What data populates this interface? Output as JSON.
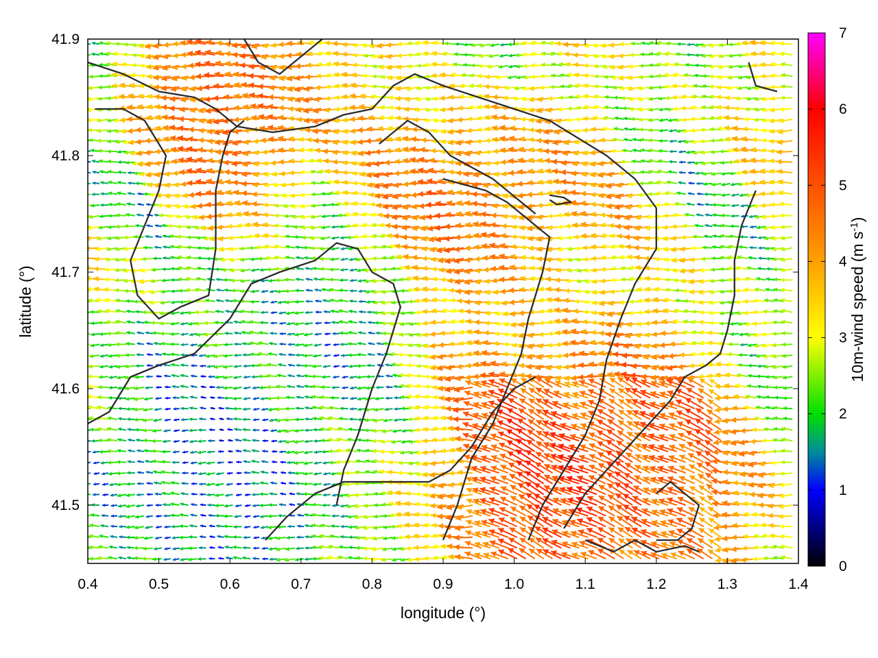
{
  "chart_data": {
    "type": "vector-field",
    "xlabel": "longitude (°)",
    "ylabel": "latitude (°)",
    "xlim": [
      0.4,
      1.4
    ],
    "ylim": [
      41.45,
      41.9
    ],
    "xticks": [
      0.4,
      0.5,
      0.6,
      0.7,
      0.8,
      0.9,
      1.0,
      1.1,
      1.2,
      1.3,
      1.4
    ],
    "xtick_labels": [
      "0.4",
      "0.5",
      "0.6",
      "0.7",
      "0.8",
      "0.9",
      "1.0",
      "1.1",
      "1.2",
      "1.3",
      "1.4"
    ],
    "yticks": [
      41.5,
      41.6,
      41.7,
      41.8,
      41.9
    ],
    "ytick_labels": [
      "41.5",
      "41.6",
      "41.7",
      "41.8",
      "41.9"
    ],
    "colorbar": {
      "label_main": "10m-wind speed (m s",
      "label_sup": "-1",
      "label_end": ")",
      "range": [
        0,
        7
      ],
      "ticks": [
        0,
        1,
        2,
        3,
        4,
        5,
        6,
        7
      ],
      "tick_labels": [
        "0",
        "1",
        "2",
        "3",
        "4",
        "5",
        "6",
        "7"
      ],
      "palette": [
        {
          "value": 0,
          "color": "#000000"
        },
        {
          "value": 1,
          "color": "#0000ff"
        },
        {
          "value": 1.5,
          "color": "#008c9a"
        },
        {
          "value": 2,
          "color": "#00e000"
        },
        {
          "value": 3,
          "color": "#ffff00"
        },
        {
          "value": 4,
          "color": "#ffa000"
        },
        {
          "value": 5,
          "color": "#ff5000"
        },
        {
          "value": 6,
          "color": "#ff0000"
        },
        {
          "value": 7,
          "color": "#ff00ff"
        }
      ]
    },
    "wind_direction": "predominantly easterly (vectors pointing west), veering to north-westward in the south-east",
    "speed_regions": [
      {
        "name": "north-central high-wind band",
        "lon": [
          0.55,
          0.7
        ],
        "lat": [
          41.8,
          41.9
        ],
        "speed": 5.3
      },
      {
        "name": "central ridge",
        "lon": [
          0.85,
          1.05
        ],
        "lat": [
          41.72,
          41.8
        ],
        "speed": 5.0
      },
      {
        "name": "south-east jet",
        "lon": [
          0.95,
          1.25
        ],
        "lat": [
          41.45,
          41.6
        ],
        "speed": 6.0
      },
      {
        "name": "south-west calm basin",
        "lon": [
          0.4,
          0.75
        ],
        "lat": [
          41.45,
          41.6
        ],
        "speed": 1.0
      },
      {
        "name": "central calm area",
        "lon": [
          0.65,
          0.8
        ],
        "lat": [
          41.62,
          41.7
        ],
        "speed": 1.3
      }
    ],
    "contour_lines": [
      [
        [
          0.4,
          41.88
        ],
        [
          0.45,
          41.87
        ],
        [
          0.5,
          41.855
        ],
        [
          0.55,
          41.85
        ],
        [
          0.58,
          41.84
        ],
        [
          0.61,
          41.825
        ],
        [
          0.66,
          41.82
        ],
        [
          0.72,
          41.825
        ],
        [
          0.76,
          41.835
        ],
        [
          0.8,
          41.84
        ],
        [
          0.83,
          41.86
        ],
        [
          0.86,
          41.87
        ],
        [
          0.9,
          41.86
        ],
        [
          0.95,
          41.85
        ],
        [
          1.0,
          41.84
        ],
        [
          1.05,
          41.83
        ],
        [
          1.09,
          41.815
        ],
        [
          1.13,
          41.8
        ],
        [
          1.17,
          41.78
        ],
        [
          1.2,
          41.755
        ],
        [
          1.2,
          41.72
        ],
        [
          1.17,
          41.69
        ],
        [
          1.15,
          41.66
        ],
        [
          1.13,
          41.625
        ],
        [
          1.12,
          41.59
        ],
        [
          1.1,
          41.56
        ],
        [
          1.07,
          41.53
        ],
        [
          1.04,
          41.5
        ],
        [
          1.02,
          41.47
        ]
      ],
      [
        [
          0.41,
          41.84
        ],
        [
          0.45,
          41.84
        ],
        [
          0.48,
          41.83
        ],
        [
          0.51,
          41.8
        ],
        [
          0.5,
          41.77
        ],
        [
          0.48,
          41.74
        ],
        [
          0.46,
          41.71
        ],
        [
          0.47,
          41.68
        ],
        [
          0.5,
          41.66
        ],
        [
          0.53,
          41.67
        ],
        [
          0.57,
          41.68
        ],
        [
          0.58,
          41.72
        ],
        [
          0.58,
          41.77
        ],
        [
          0.59,
          41.8
        ],
        [
          0.6,
          41.82
        ],
        [
          0.62,
          41.83
        ]
      ],
      [
        [
          0.4,
          41.57
        ],
        [
          0.43,
          41.58
        ],
        [
          0.46,
          41.61
        ],
        [
          0.5,
          41.62
        ],
        [
          0.55,
          41.63
        ],
        [
          0.6,
          41.66
        ],
        [
          0.63,
          41.69
        ],
        [
          0.67,
          41.7
        ],
        [
          0.72,
          41.71
        ],
        [
          0.75,
          41.725
        ],
        [
          0.78,
          41.72
        ],
        [
          0.8,
          41.7
        ],
        [
          0.83,
          41.69
        ],
        [
          0.84,
          41.67
        ],
        [
          0.82,
          41.63
        ],
        [
          0.8,
          41.6
        ],
        [
          0.78,
          41.56
        ],
        [
          0.76,
          41.53
        ],
        [
          0.75,
          41.5
        ]
      ],
      [
        [
          0.65,
          41.47
        ],
        [
          0.68,
          41.49
        ],
        [
          0.72,
          41.51
        ],
        [
          0.76,
          41.52
        ],
        [
          0.8,
          41.52
        ],
        [
          0.84,
          41.52
        ],
        [
          0.88,
          41.52
        ],
        [
          0.91,
          41.53
        ],
        [
          0.94,
          41.55
        ],
        [
          0.97,
          41.58
        ],
        [
          1.0,
          41.6
        ],
        [
          1.03,
          41.61
        ]
      ],
      [
        [
          0.81,
          41.81
        ],
        [
          0.85,
          41.83
        ],
        [
          0.88,
          41.82
        ],
        [
          0.91,
          41.8
        ],
        [
          0.94,
          41.79
        ],
        [
          0.97,
          41.78
        ],
        [
          1.0,
          41.765
        ],
        [
          1.03,
          41.75
        ]
      ],
      [
        [
          0.9,
          41.78
        ],
        [
          0.93,
          41.775
        ],
        [
          0.96,
          41.77
        ],
        [
          0.99,
          41.76
        ],
        [
          1.02,
          41.745
        ],
        [
          1.05,
          41.73
        ],
        [
          1.04,
          41.7
        ],
        [
          1.02,
          41.66
        ],
        [
          1.01,
          41.63
        ],
        [
          0.99,
          41.6
        ],
        [
          0.97,
          41.57
        ],
        [
          0.94,
          41.54
        ],
        [
          0.92,
          41.5
        ],
        [
          0.9,
          41.47
        ]
      ],
      [
        [
          1.34,
          41.77
        ],
        [
          1.32,
          41.74
        ],
        [
          1.31,
          41.71
        ],
        [
          1.31,
          41.68
        ],
        [
          1.3,
          41.65
        ],
        [
          1.29,
          41.63
        ],
        [
          1.27,
          41.62
        ],
        [
          1.24,
          41.61
        ],
        [
          1.22,
          41.59
        ],
        [
          1.19,
          41.57
        ],
        [
          1.16,
          41.55
        ],
        [
          1.13,
          41.53
        ],
        [
          1.1,
          41.51
        ],
        [
          1.07,
          41.48
        ]
      ],
      [
        [
          1.33,
          41.88
        ],
        [
          1.34,
          41.86
        ],
        [
          1.37,
          41.855
        ]
      ],
      [
        [
          1.2,
          41.51
        ],
        [
          1.22,
          41.52
        ],
        [
          1.24,
          41.51
        ],
        [
          1.26,
          41.5
        ],
        [
          1.25,
          41.48
        ],
        [
          1.23,
          41.47
        ],
        [
          1.2,
          41.47
        ]
      ],
      [
        [
          1.1,
          41.47
        ],
        [
          1.14,
          41.46
        ],
        [
          1.17,
          41.47
        ],
        [
          1.2,
          41.46
        ],
        [
          1.24,
          41.465
        ],
        [
          1.26,
          41.46
        ]
      ],
      [
        [
          0.62,
          41.9
        ],
        [
          0.64,
          41.88
        ],
        [
          0.67,
          41.87
        ],
        [
          0.7,
          41.885
        ],
        [
          0.73,
          41.9
        ]
      ],
      [
        [
          1.05,
          41.766
        ],
        [
          1.07,
          41.764
        ],
        [
          1.08,
          41.76
        ],
        [
          1.06,
          41.758
        ],
        [
          1.05,
          41.762
        ]
      ]
    ]
  }
}
